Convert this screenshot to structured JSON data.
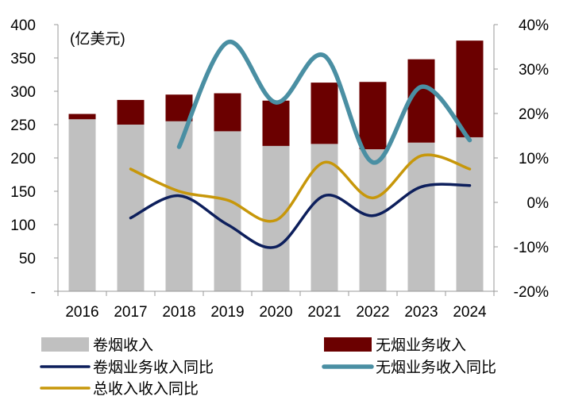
{
  "chart_data": {
    "type": "bar",
    "unit_label": "(亿美元)",
    "categories": [
      "2016",
      "2017",
      "2018",
      "2019",
      "2020",
      "2021",
      "2022",
      "2023",
      "2024"
    ],
    "stacked": true,
    "left_axis": {
      "ylim": [
        0,
        400
      ],
      "ticks": [
        "-",
        "50",
        "100",
        "150",
        "200",
        "250",
        "300",
        "350",
        "400"
      ]
    },
    "right_axis": {
      "ylim": [
        -20,
        40
      ],
      "ticks": [
        "-20%",
        "-10%",
        "0%",
        "10%",
        "20%",
        "30%",
        "40%"
      ]
    },
    "bar_series": [
      {
        "name": "卷烟收入",
        "color": "#c0c0c0",
        "values": [
          258,
          250,
          255,
          240,
          218,
          221,
          213,
          223,
          231
        ]
      },
      {
        "name": "无烟业务收入",
        "color": "#6b0000",
        "values": [
          8,
          37,
          40,
          57,
          68,
          92,
          101,
          125,
          145
        ]
      }
    ],
    "line_series": [
      {
        "name": "卷烟业务收入同比",
        "color": "#0d1f5c",
        "axis": "right",
        "values": [
          null,
          -3.5,
          1.5,
          -5,
          -10,
          1.5,
          -3,
          3.5,
          3.8
        ]
      },
      {
        "name": "无烟业务收入同比",
        "color": "#4a8fa3",
        "axis": "right",
        "values": [
          null,
          null,
          12.5,
          36,
          22.5,
          33,
          9,
          26,
          14
        ]
      },
      {
        "name": "总收入收入同比",
        "color": "#c7970a",
        "axis": "right",
        "values": [
          null,
          7.5,
          2.5,
          0.5,
          -4,
          9,
          1,
          10.5,
          7.5
        ]
      }
    ],
    "legend": {
      "position": "bottom"
    },
    "grid": false
  }
}
